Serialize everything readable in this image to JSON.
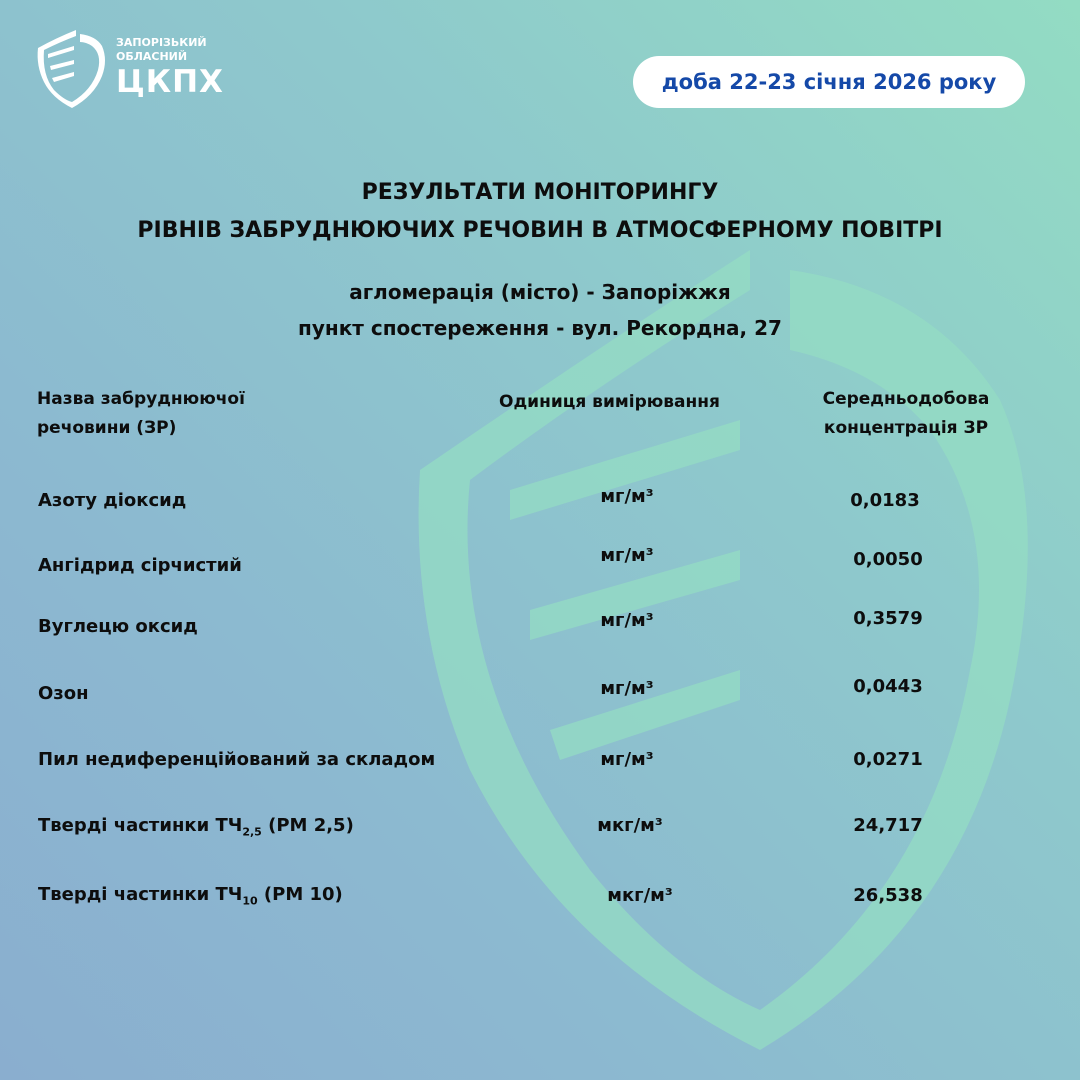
{
  "logo": {
    "line1": "ЗАПОРІЗЬКИЙ",
    "line2": "ОБЛАСНИЙ",
    "abbr": "ЦКПХ"
  },
  "date_badge": "доба 22-23 січня 2026 року",
  "title": {
    "line1": "РЕЗУЛЬТАТИ МОНІТОРИНГУ",
    "line2": "РІВНІВ ЗАБРУДНЮЮЧИХ РЕЧОВИН В АТМОСФЕРНОМУ ПОВІТРІ"
  },
  "subtitle": {
    "line1": "агломерація (місто) - Запоріжжя",
    "line2": "пункт спостереження - вул. Рекордна, 27"
  },
  "table": {
    "headers": {
      "name_1": "Назва забруднюючої",
      "name_2": "речовини (ЗР)",
      "unit": "Одиниця вимірювання",
      "value_1": "Середньодобова",
      "value_2": "концентрація ЗР"
    },
    "rows": [
      {
        "name": "Азоту діоксид",
        "unit": "мг/м³",
        "value": "0,0183"
      },
      {
        "name": "Ангідрид сірчистий",
        "unit": "мг/м³",
        "value": "0,0050"
      },
      {
        "name": "Вуглецю оксид",
        "unit": "мг/м³",
        "value": "0,3579"
      },
      {
        "name": "Озон",
        "unit": "мг/м³",
        "value": "0,0443"
      },
      {
        "name": "Пил недиференційований за складом",
        "unit": "мг/м³",
        "value": "0,0271"
      },
      {
        "name": "Тверді частинки ТЧ",
        "sub": "2,5",
        "suffix": "(PM 2,5)",
        "unit": "мкг/м³",
        "value": "24,717"
      },
      {
        "name": "Тверді частинки ТЧ",
        "sub": "10",
        "suffix": "(PM 10)",
        "unit": "мкг/м³",
        "value": "26,538"
      }
    ]
  }
}
